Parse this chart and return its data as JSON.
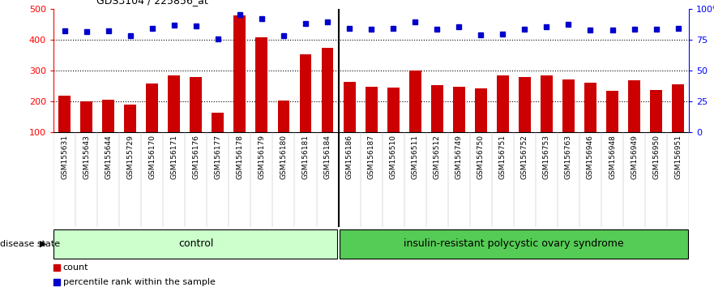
{
  "title": "GDS3104 / 225856_at",
  "categories": [
    "GSM155631",
    "GSM155643",
    "GSM155644",
    "GSM155729",
    "GSM156170",
    "GSM156171",
    "GSM156176",
    "GSM156177",
    "GSM156178",
    "GSM156179",
    "GSM156180",
    "GSM156181",
    "GSM156184",
    "GSM156186",
    "GSM156187",
    "GSM156510",
    "GSM156511",
    "GSM156512",
    "GSM156749",
    "GSM156750",
    "GSM156751",
    "GSM156752",
    "GSM156753",
    "GSM156763",
    "GSM156946",
    "GSM156948",
    "GSM156949",
    "GSM156950",
    "GSM156951"
  ],
  "bar_values": [
    218,
    200,
    205,
    190,
    258,
    283,
    277,
    163,
    478,
    408,
    202,
    352,
    373,
    263,
    248,
    245,
    300,
    253,
    246,
    242,
    283,
    278,
    283,
    270,
    260,
    233,
    268,
    237,
    255
  ],
  "dot_values": [
    428,
    425,
    428,
    413,
    437,
    447,
    443,
    403,
    480,
    468,
    413,
    453,
    457,
    437,
    432,
    437,
    457,
    432,
    440,
    415,
    418,
    432,
    440,
    450,
    430,
    430,
    432,
    432,
    437
  ],
  "control_count": 13,
  "bar_color": "#cc0000",
  "dot_color": "#0000cc",
  "ymin": 100,
  "ymax": 500,
  "yticks_left": [
    100,
    200,
    300,
    400,
    500
  ],
  "yticks_right": [
    0,
    25,
    50,
    75,
    100
  ],
  "grid_values": [
    200,
    300,
    400
  ],
  "control_label": "control",
  "disease_label": "insulin-resistant polycystic ovary syndrome",
  "disease_state_label": "disease state",
  "legend_bar": "count",
  "legend_dot": "percentile rank within the sample",
  "control_bg": "#ccffcc",
  "disease_bg": "#55cc55",
  "xtick_bg": "#d0d0d0"
}
